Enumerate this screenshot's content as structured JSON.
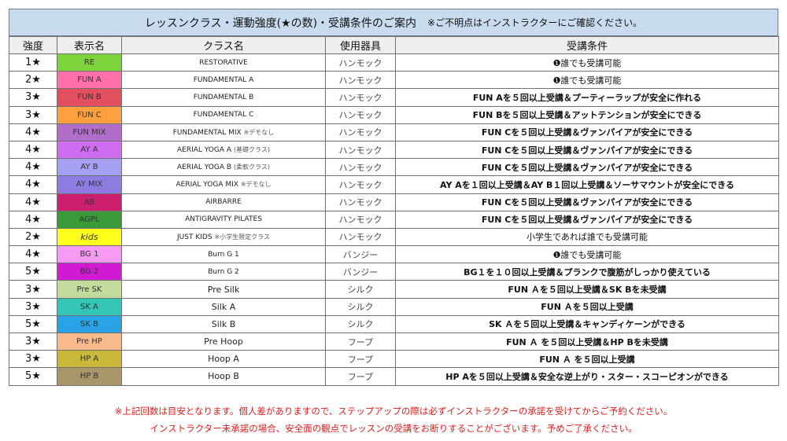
{
  "title": "レッスンクラス・運動強度(★の数)・受講条件のご案内",
  "title_note": "※ご不明点はインストラクターにご確認ください。",
  "headers": [
    "強度",
    "表示名",
    "クラス名",
    "使用器具",
    "受講条件"
  ],
  "rows": [
    {
      "level": "1★",
      "display": "RE",
      "color": "#7ed23c",
      "cls": "RESTORATIVE",
      "sub": "",
      "equipment": "ハンモック",
      "req": "❶誰でも受講可能",
      "bold": false
    },
    {
      "level": "2★",
      "display": "FUN A",
      "color": "#ff6fa8",
      "cls": "FUNDAMENTAL A",
      "sub": "",
      "equipment": "ハンモック",
      "req": "❶誰でも受講可能",
      "bold": false
    },
    {
      "level": "3★",
      "display": "FUN B",
      "color": "#e24f5e",
      "cls": "FUNDAMENTAL B",
      "sub": "",
      "equipment": "ハンモック",
      "req": "FUN Aを５回以上受講＆プーティーラップが安全に作れる",
      "bold": true
    },
    {
      "level": "3★",
      "display": "FUN C",
      "color": "#fca040",
      "cls": "FUNDAMENTAL C",
      "sub": "",
      "equipment": "ハンモック",
      "req": "FUN Bを５回以上受講＆アットテンションが安全にできる",
      "bold": true
    },
    {
      "level": "4★",
      "display": "FUN MIX",
      "color": "#b06ec8",
      "cls": "FUNDAMENTAL MIX",
      "sub": "※デモなし",
      "equipment": "ハンモック",
      "req": "FUN Cを５回以上受講＆ヴァンパイアが安全にできる",
      "bold": true
    },
    {
      "level": "4★",
      "display": "AY A",
      "color": "#cf6cf2",
      "cls": "AERIAL YOGA A",
      "sub": "(基礎クラス)",
      "equipment": "ハンモック",
      "req": "FUN Cを５回以上受講＆ヴァンパイアが安全にできる",
      "bold": true
    },
    {
      "level": "4★",
      "display": "AY B",
      "color": "#a5a0f2",
      "cls": "AERIAL YOGA B",
      "sub": "(柔軟クラス)",
      "equipment": "ハンモック",
      "req": "FUN Cを５回以上受講＆ヴァンパイアが安全にできる",
      "bold": true
    },
    {
      "level": "4★",
      "display": "AY MIX",
      "color": "#8e7ce0",
      "cls": "AERIAL YOGA MIX",
      "sub": "※デモなし",
      "equipment": "ハンモック",
      "req": "AY Aを１回以上受講＆AY B１回以上受講＆ソーサマウントが安全にできる",
      "bold": true
    },
    {
      "level": "4★",
      "display": "AB",
      "color": "#cc1f6e",
      "cls": "AIRBARRE",
      "sub": "",
      "equipment": "ハンモック",
      "req": "FUN Cを５回以上受講＆ヴァンパイアが安全にできる",
      "bold": true
    },
    {
      "level": "4★",
      "display": "AGPL",
      "color": "#3a9a3a",
      "cls": "ANTIGRAVITY PILATES",
      "sub": "",
      "equipment": "ハンモック",
      "req": "FUN Cを５回以上受講＆ヴァンパイアが安全にできる",
      "bold": true
    },
    {
      "level": "2★",
      "display": "kids",
      "color": "#ffff1e",
      "cls": "JUST KIDS",
      "sub": "※小学生限定クラス",
      "equipment": "ハンモック",
      "req": "小学生であれば誰でも受講可能",
      "bold": false
    },
    {
      "level": "4★",
      "display": "BG 1",
      "color": "#f79af2",
      "cls": "Burn G 1",
      "sub": "",
      "equipment": "バンジー",
      "req": "❶誰でも受講可能",
      "bold": false
    },
    {
      "level": "5★",
      "display": "BG 2",
      "color": "#d11ad3",
      "cls": "Burn G 2",
      "sub": "",
      "equipment": "バンジー",
      "req": "BG１を１０回以上受講＆プランクで腹筋がしっかり使えている",
      "bold": true
    },
    {
      "level": "3★",
      "display": "Pre SK",
      "color": "#c3dc9e",
      "cls": "Pre Silk",
      "sub": "",
      "equipment": "シルク",
      "req": "FUN Ａを５回以上受講＆SK Bを未受講",
      "bold": true
    },
    {
      "level": "3★",
      "display": "SK A",
      "color": "#34c7b6",
      "cls": "Silk A",
      "sub": "",
      "equipment": "シルク",
      "req": "FUN Ａを５回以上受講",
      "bold": true
    },
    {
      "level": "5★",
      "display": "SK B",
      "color": "#2aa3e6",
      "cls": "Silk B",
      "sub": "",
      "equipment": "シルク",
      "req": "SK Ａを５回以上受講＆キャンディケーンができる",
      "bold": true
    },
    {
      "level": "3★",
      "display": "Pre HP",
      "color": "#f9bb8b",
      "cls": "Pre Hoop",
      "sub": "",
      "equipment": "フープ",
      "req": "FUN Ａ を５回以上受講＆HP Bを未受講",
      "bold": true
    },
    {
      "level": "3★",
      "display": "HP A",
      "color": "#c9b83a",
      "cls": "Hoop A",
      "sub": "",
      "equipment": "フープ",
      "req": "FUN Ａ を５回以上受講",
      "bold": true
    },
    {
      "level": "5★",
      "display": "HP B",
      "color": "#a8956a",
      "cls": "Hoop B",
      "sub": "",
      "equipment": "フープ",
      "req": "HP Aを５回以上受講＆安全な逆上がり・スター・スコーピオンができる",
      "bold": true
    }
  ],
  "footer": [
    "※上記回数は目安となります。個人差がありますので、ステップアップの際は必ずインストラクターの承諾を受けてからご予約ください。",
    "インストラクター未承諾の場合、安全面の観点でレッスンの受講をお断りすることがございます。予めご了承ください。"
  ]
}
